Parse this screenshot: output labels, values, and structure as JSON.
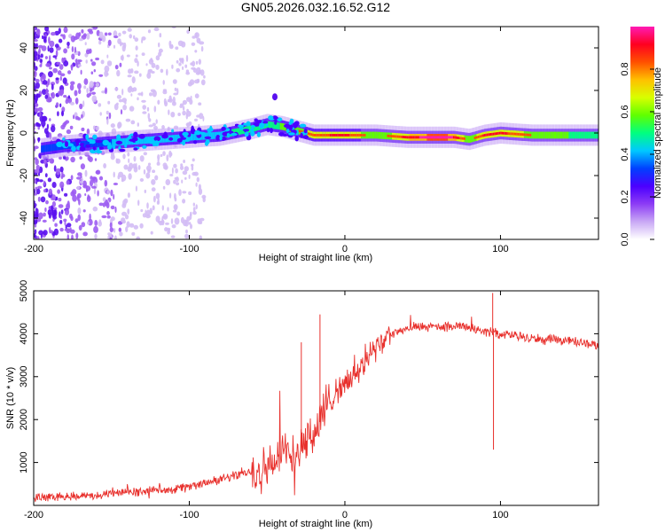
{
  "title": "GN05.2026.032.16.52.G12",
  "chart_data": [
    {
      "type": "heatmap",
      "name": "spectrogram",
      "xlabel": "Height of straight line (km)",
      "ylabel": "Frequency (Hz)",
      "xlim": [
        -200,
        163
      ],
      "ylim": [
        -50,
        50
      ],
      "x_ticks": [
        -200,
        -100,
        0,
        100
      ],
      "y_ticks": [
        -40,
        -20,
        0,
        20,
        40
      ],
      "colorbar": {
        "label": "Normalized spectral amplitude",
        "range": [
          0,
          1
        ],
        "ticks": [
          0.0,
          0.2,
          0.4,
          0.6,
          0.8
        ],
        "tick_labels": [
          "0.0",
          "0.2",
          "0.4",
          "0.6",
          "0.8"
        ],
        "colors": [
          "#ffffff",
          "#c9a8f5",
          "#8d3cf5",
          "#4b00ff",
          "#0040ff",
          "#00c8ff",
          "#00ff80",
          "#60ff00",
          "#d8ff00",
          "#ffc000",
          "#ff5000",
          "#ff0020",
          "#ff1ab4"
        ]
      },
      "ridge_x": [
        -200,
        -180,
        -160,
        -140,
        -120,
        -100,
        -80,
        -60,
        -50,
        -40,
        -30,
        -20,
        0,
        20,
        40,
        60,
        70,
        80,
        90,
        100,
        120,
        140,
        163
      ],
      "ridge_freq": [
        -8,
        -6,
        -5,
        -4,
        -3,
        -2,
        -1,
        2,
        4,
        3,
        1,
        -1,
        -1,
        -1,
        -2,
        -2,
        -2,
        -3,
        -1,
        0,
        -1,
        -1,
        -1
      ],
      "ridge_amplitude": [
        0.3,
        0.35,
        0.35,
        0.4,
        0.4,
        0.45,
        0.45,
        0.5,
        0.5,
        0.55,
        0.6,
        0.65,
        0.7,
        0.55,
        0.7,
        0.85,
        0.75,
        0.55,
        0.7,
        0.7,
        0.6,
        0.55,
        0.5
      ]
    },
    {
      "type": "line",
      "name": "snr",
      "xlabel": "Height of straight line (km)",
      "ylabel": "SNR (10 * v/v)",
      "xlim": [
        -200,
        163
      ],
      "ylim": [
        0,
        5000
      ],
      "x_ticks": [
        -200,
        -100,
        0,
        100
      ],
      "y_ticks": [
        1000,
        2000,
        3000,
        4000,
        5000
      ],
      "color": "#e8302c",
      "series": [
        {
          "name": "SNR",
          "x": [
            -200,
            -180,
            -160,
            -140,
            -120,
            -100,
            -90,
            -80,
            -70,
            -60,
            -50,
            -40,
            -30,
            -20,
            -15,
            -10,
            -5,
            0,
            5,
            10,
            15,
            20,
            25,
            30,
            40,
            50,
            60,
            70,
            80,
            90,
            100,
            110,
            120,
            130,
            140,
            150,
            163
          ],
          "y": [
            200,
            210,
            240,
            300,
            360,
            420,
            520,
            600,
            700,
            800,
            900,
            1100,
            1300,
            1700,
            2000,
            2400,
            2700,
            2800,
            3000,
            3200,
            3400,
            3650,
            3850,
            4000,
            4100,
            4150,
            4150,
            4150,
            4150,
            4050,
            4000,
            3950,
            3900,
            3850,
            3850,
            3800,
            3750
          ]
        }
      ],
      "spikes": [
        {
          "x": -16,
          "y": 4450
        },
        {
          "x": -28,
          "y": 3800
        },
        {
          "x": 95,
          "y": 4950
        },
        {
          "x": 95.5,
          "y": 1300
        }
      ]
    }
  ]
}
